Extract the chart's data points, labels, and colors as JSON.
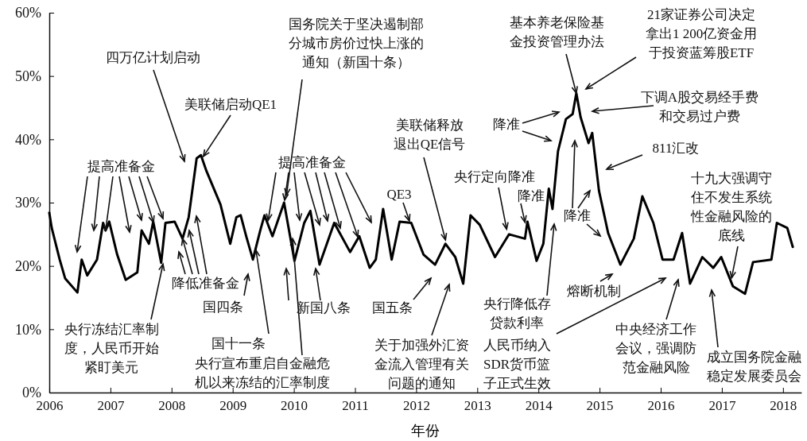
{
  "chart_data": {
    "type": "line",
    "xlabel": "年份",
    "xlim": [
      2006,
      2018.3
    ],
    "xticks": [
      2006,
      2007,
      2008,
      2009,
      2010,
      2011,
      2012,
      2013,
      2014,
      2015,
      2016,
      2017,
      2018
    ],
    "ylim": [
      0,
      60
    ],
    "yticks": [
      {
        "value": 0,
        "label": "0%"
      },
      {
        "value": 10,
        "label": "10%"
      },
      {
        "value": 20,
        "label": "20%"
      },
      {
        "value": 30,
        "label": "30%"
      },
      {
        "value": 40,
        "label": "40%"
      },
      {
        "value": 50,
        "label": "50%"
      },
      {
        "value": 60,
        "label": "60%"
      }
    ],
    "x": [
      2006.0,
      2006.04,
      2006.17,
      2006.26,
      2006.46,
      2006.53,
      2006.62,
      2006.78,
      2006.88,
      2006.92,
      2006.98,
      2007.11,
      2007.25,
      2007.44,
      2007.51,
      2007.63,
      2007.7,
      2007.83,
      2007.9,
      2008.05,
      2008.18,
      2008.28,
      2008.41,
      2008.48,
      2008.57,
      2008.8,
      2008.96,
      2009.06,
      2009.13,
      2009.22,
      2009.33,
      2009.45,
      2009.52,
      2009.65,
      2009.84,
      2010.01,
      2010.17,
      2010.27,
      2010.42,
      2010.66,
      2010.92,
      2011.07,
      2011.24,
      2011.34,
      2011.46,
      2011.6,
      2011.73,
      2011.92,
      2012.12,
      2012.31,
      2012.48,
      2012.64,
      2012.77,
      2012.89,
      2013.04,
      2013.29,
      2013.52,
      2013.78,
      2013.82,
      2013.97,
      2014.08,
      2014.17,
      2014.23,
      2014.32,
      2014.45,
      2014.56,
      2014.62,
      2014.69,
      2014.82,
      2014.88,
      2014.99,
      2015.14,
      2015.34,
      2015.56,
      2015.7,
      2015.88,
      2016.03,
      2016.21,
      2016.35,
      2016.48,
      2016.68,
      2016.86,
      2016.99,
      2017.18,
      2017.38,
      2017.51,
      2017.81,
      2017.9,
      2018.07,
      2018.16
    ],
    "series": [
      {
        "color": "#000000",
        "values": [
          28.4,
          26,
          21,
          18,
          15.8,
          21,
          18.5,
          21,
          26.8,
          25.6,
          27,
          21.8,
          17.8,
          19,
          25.6,
          23.5,
          27,
          20.5,
          26.8,
          27,
          24.3,
          27.7,
          37,
          37.5,
          35,
          29.7,
          23.5,
          27.7,
          28,
          24.7,
          21,
          25.6,
          28,
          24.7,
          30,
          20.8,
          26.8,
          28.7,
          20.2,
          26.8,
          22.2,
          24.7,
          19.7,
          21,
          29,
          21,
          27,
          26.8,
          21.8,
          20.2,
          23.5,
          21.4,
          17.2,
          28,
          26.5,
          21.4,
          25,
          24.3,
          27,
          20.8,
          23.5,
          32.2,
          29,
          38.1,
          43.2,
          44,
          47.3,
          43.5,
          39.4,
          41,
          31.9,
          25.2,
          20.2,
          24.3,
          31,
          26.8,
          21,
          21,
          25.2,
          17.2,
          21.4,
          19.7,
          21.4,
          16.8,
          15.6,
          20.6,
          21,
          26.8,
          26,
          23
        ]
      }
    ],
    "annotations": [
      "四万亿计划启动",
      {
        "text": "国务院关于坚决遏制部分城市房价过快上涨的通知（新国十条）",
        "x": 2009.88,
        "y": 31.2
      },
      {
        "text": "基本养老保险基金投资管理办法",
        "x": 2014.62,
        "y": 47.3
      },
      "21家证券公司决定拿出1 200亿资金用于投资蓝筹股ETF",
      {
        "text": "美联储启动QE1",
        "x": 2008.52,
        "y": 37.3
      },
      "下调A股交易经手费和交易过户费",
      {
        "text": "美联储释放退出QE信号",
        "x": 2012.48,
        "y": 24.1
      },
      "降准",
      "811汇改",
      {
        "text": "提高准备金",
        "x": 2006.92,
        "y": 25.6
      },
      {
        "text": "提高准备金",
        "x": 2009.58,
        "y": 27.2
      },
      {
        "text": "十九大强调守住不发生系统性金融风险的底线",
        "x": 2017.16,
        "y": 18.1
      },
      {
        "text": "央行定向降准",
        "x": 2013.48,
        "y": 25.8
      },
      {
        "text": "QE3",
        "x": 2011.89,
        "y": 27.1
      },
      {
        "text": "降准",
        "x": 2013.78,
        "y": 26.9
      },
      "降准",
      {
        "text": "降低准备金",
        "x": 2008.18,
        "y": 24.3
      },
      "熔断机制",
      {
        "text": "央行冻结汇率制度，人民币开始紧盯美元",
        "x": 2007.86,
        "y": 20.3
      },
      "国四条",
      "新国八条",
      "国五条",
      "央行降低存贷款利率",
      {
        "text": "国十一条",
        "x": 2009.38,
        "y": 22.5
      },
      "关于加强外汇资金流入管理有关问题的通知",
      "人民币纳入SDR货币篮子正式生效",
      "中央经济工作会议，强调防范金融风险",
      {
        "text": "央行宣布重启自金融危机以来冻结的汇率制度",
        "x": 2009.98,
        "y": 24.3
      },
      "成立国务院金融稳定发展委员会"
    ]
  }
}
